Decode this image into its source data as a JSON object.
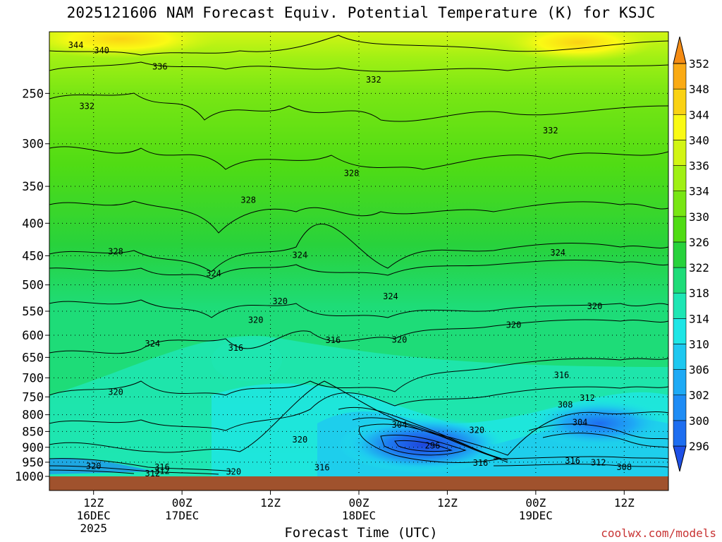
{
  "chart_data": {
    "type": "heatmap",
    "title": "2025121606 NAM Forecast Equiv. Potential Temperature (K) for KSJC",
    "xlabel": "Forecast Time (UTC)",
    "ylabel": "",
    "credit": "coolwx.com/models",
    "y_scale": "pressure",
    "ylim": [
      1000,
      200
    ],
    "y_ticks": [
      250,
      300,
      350,
      400,
      450,
      500,
      550,
      600,
      650,
      700,
      750,
      800,
      850,
      900,
      950,
      1000
    ],
    "x_ticks": [
      {
        "line1": "12Z",
        "line2": "16DEC",
        "line3": "2025"
      },
      {
        "line1": "00Z",
        "line2": "17DEC",
        "line3": ""
      },
      {
        "line1": "12Z",
        "line2": "",
        "line3": ""
      },
      {
        "line1": "00Z",
        "line2": "18DEC",
        "line3": ""
      },
      {
        "line1": "12Z",
        "line2": "",
        "line3": ""
      },
      {
        "line1": "00Z",
        "line2": "19DEC",
        "line3": ""
      },
      {
        "line1": "12Z",
        "line2": "",
        "line3": ""
      }
    ],
    "x_tick_hours": [
      6,
      18,
      30,
      42,
      54,
      66,
      78
    ],
    "x_range_hours": [
      0,
      84
    ],
    "colorbar": {
      "levels": [
        296,
        300,
        302,
        306,
        310,
        314,
        318,
        322,
        326,
        330,
        334,
        336,
        340,
        344,
        348,
        352
      ],
      "colors": [
        "#1e50e6",
        "#1e6ef0",
        "#1e8cf5",
        "#1eaaf5",
        "#1ec8f0",
        "#1ee6e6",
        "#1ee6b4",
        "#1edc78",
        "#28d23c",
        "#50dc14",
        "#78e614",
        "#a0f014",
        "#d2f514",
        "#fafa14",
        "#fad214",
        "#faaa14",
        "#f58c14"
      ],
      "extend": "both"
    },
    "contour_labels": [
      {
        "text": "344",
        "hour": 3.6,
        "p": 210
      },
      {
        "text": "340",
        "hour": 7.1,
        "p": 214
      },
      {
        "text": "336",
        "hour": 15,
        "p": 227
      },
      {
        "text": "332",
        "hour": 44,
        "p": 238
      },
      {
        "text": "332",
        "hour": 5.1,
        "p": 262
      },
      {
        "text": "332",
        "hour": 68,
        "p": 286
      },
      {
        "text": "328",
        "hour": 41,
        "p": 334
      },
      {
        "text": "328",
        "hour": 27,
        "p": 368
      },
      {
        "text": "328",
        "hour": 9,
        "p": 443
      },
      {
        "text": "324",
        "hour": 34,
        "p": 449
      },
      {
        "text": "324",
        "hour": 69,
        "p": 445
      },
      {
        "text": "324",
        "hour": 22.3,
        "p": 480
      },
      {
        "text": "324",
        "hour": 46.3,
        "p": 521
      },
      {
        "text": "320",
        "hour": 31.3,
        "p": 531
      },
      {
        "text": "320",
        "hour": 74,
        "p": 540
      },
      {
        "text": "320",
        "hour": 28,
        "p": 568
      },
      {
        "text": "320",
        "hour": 63,
        "p": 578
      },
      {
        "text": "316",
        "hour": 38.5,
        "p": 611
      },
      {
        "text": "320",
        "hour": 47.5,
        "p": 610
      },
      {
        "text": "324",
        "hour": 14,
        "p": 619
      },
      {
        "text": "316",
        "hour": 25.3,
        "p": 628
      },
      {
        "text": "316",
        "hour": 69.5,
        "p": 693
      },
      {
        "text": "320",
        "hour": 9,
        "p": 737
      },
      {
        "text": "312",
        "hour": 73,
        "p": 753
      },
      {
        "text": "308",
        "hour": 70,
        "p": 772
      },
      {
        "text": "304",
        "hour": 47.5,
        "p": 830
      },
      {
        "text": "304",
        "hour": 72,
        "p": 823
      },
      {
        "text": "320",
        "hour": 58,
        "p": 846
      },
      {
        "text": "296",
        "hour": 52,
        "p": 895
      },
      {
        "text": "320",
        "hour": 34,
        "p": 876
      },
      {
        "text": "316",
        "hour": 58.5,
        "p": 953
      },
      {
        "text": "316",
        "hour": 71,
        "p": 945
      },
      {
        "text": "312",
        "hour": 74.5,
        "p": 951
      },
      {
        "text": "308",
        "hour": 78,
        "p": 967
      },
      {
        "text": "316",
        "hour": 37,
        "p": 969
      },
      {
        "text": "320",
        "hour": 6,
        "p": 964
      },
      {
        "text": "316",
        "hour": 15.3,
        "p": 967
      },
      {
        "text": "312",
        "hour": 15.3,
        "p": 981
      },
      {
        "text": "312",
        "hour": 14,
        "p": 990
      },
      {
        "text": "320",
        "hour": 25,
        "p": 983
      }
    ]
  }
}
